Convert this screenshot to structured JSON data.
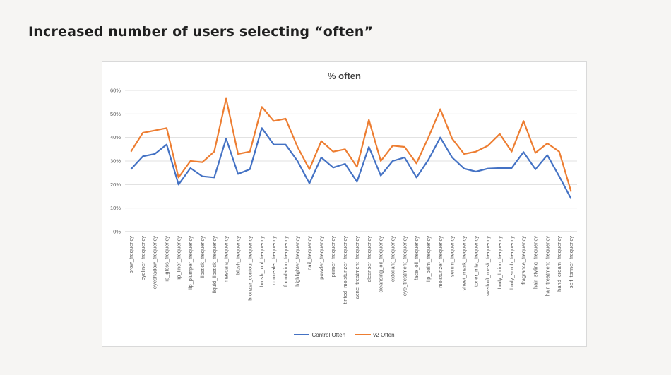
{
  "slide": {
    "title": "Increased number of users selecting “often”"
  },
  "colors": {
    "control": "#4472c4",
    "v2": "#ed7d31",
    "grid": "#d9d9d9"
  },
  "chart_data": {
    "type": "line",
    "title": "% often",
    "xlabel": "",
    "ylabel": "",
    "ylim": [
      0,
      60
    ],
    "yticks": [
      "0%",
      "10%",
      "20%",
      "30%",
      "40%",
      "50%",
      "60%"
    ],
    "grid": true,
    "legend": "bottom",
    "categories": [
      "brow_frequency",
      "eyeliner_frequency",
      "eyeshadow_frequency",
      "lip_gloss_frequency",
      "lip_liner_frequency",
      "lip_plumper_frequency",
      "lipstick_frequency",
      "liquid_lipstick_frequency",
      "mascara_frequency",
      "blush_frequency",
      "bronzer_contour_frequency",
      "brush_tool_frequency",
      "concealer_frequency",
      "foundation_frequency",
      "highlighter_frequency",
      "nail_frequency",
      "powder_frequency",
      "primer_frequency",
      "tinted_moisturizer_frequency",
      "acne_treatment_frequency",
      "cleanser_frequency",
      "cleansing_oil_frequency",
      "exfoliant_frequency",
      "eye_treatment_frequency",
      "face_oil_frequency",
      "lip_balm_frequency",
      "moisturizer_frequency",
      "serum_frequency",
      "sheet_mask_frequency",
      "toner_mist_frequency",
      "washoff_mask_frequency",
      "body_lotion_frequency",
      "body_scrub_frequency",
      "fragrance_frequency",
      "hair_styling_frequency",
      "hair_treatment_frequency",
      "hand_cream_frequency",
      "self_tanner_frequency"
    ],
    "series": [
      {
        "name": "Control Often",
        "values": [
          26.5,
          32,
          33,
          37,
          20,
          27,
          23.5,
          23,
          39.5,
          24.5,
          26.5,
          44,
          37,
          37,
          30,
          20.5,
          31.5,
          27.2,
          28.8,
          21.2,
          36,
          23.8,
          30,
          31.5,
          23,
          30.5,
          40,
          31.5,
          26.8,
          25.5,
          26.8,
          27,
          27,
          33.8,
          26.5,
          32.5,
          23.5,
          14
        ]
      },
      {
        "name": "v2 Often",
        "values": [
          34,
          42,
          43,
          44,
          23,
          30,
          29.5,
          34,
          56.5,
          33,
          34,
          53,
          47,
          48,
          36,
          26.5,
          38.5,
          34,
          35,
          27.5,
          47.5,
          30,
          36.5,
          36,
          29,
          40,
          52,
          39.5,
          33,
          34,
          36.5,
          41.5,
          34,
          47,
          33.5,
          37.5,
          34,
          17
        ]
      }
    ]
  }
}
